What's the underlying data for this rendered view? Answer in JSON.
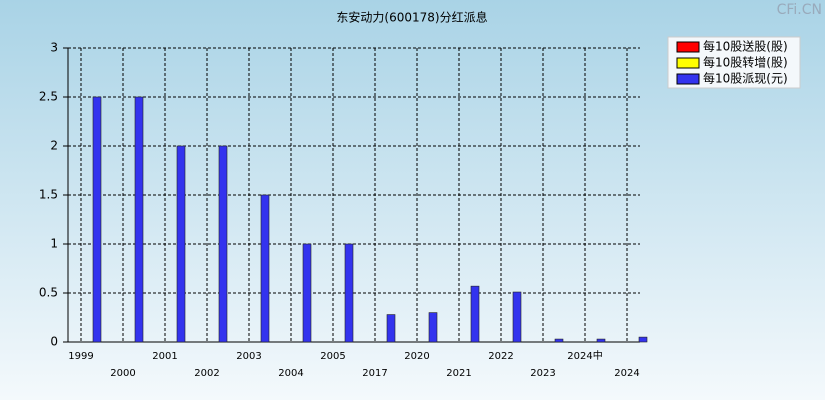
{
  "chart_data": {
    "type": "bar",
    "title": "东安动力(600178)分红派息",
    "watermark": "CFi.CN",
    "categories": [
      "1999",
      "2000",
      "2001",
      "2002",
      "2003",
      "2004",
      "2005",
      "2017",
      "2020",
      "2021",
      "2022",
      "2023",
      "2024中",
      "2024"
    ],
    "series": [
      {
        "name": "每10股送股(股)",
        "color": "#ff0000",
        "values": [
          0,
          0,
          0,
          0,
          0,
          0,
          0,
          0,
          0,
          0,
          0,
          0,
          0,
          0
        ]
      },
      {
        "name": "每10股转增(股)",
        "color": "#ffff00",
        "values": [
          0,
          0,
          0,
          0,
          0,
          0,
          0,
          0,
          0,
          0,
          0,
          0,
          0,
          0
        ]
      },
      {
        "name": "每10股派现(元)",
        "color": "#3333ee",
        "values": [
          2.5,
          2.5,
          2,
          2,
          1.5,
          1,
          1,
          0.28,
          0.3,
          0.57,
          0.51,
          0.03,
          0.03,
          0.05
        ]
      }
    ],
    "ylim": [
      0,
      3
    ],
    "yticks": [
      0,
      0.5,
      1,
      1.5,
      2,
      2.5,
      3
    ],
    "grid": true,
    "legend": "top-right"
  }
}
